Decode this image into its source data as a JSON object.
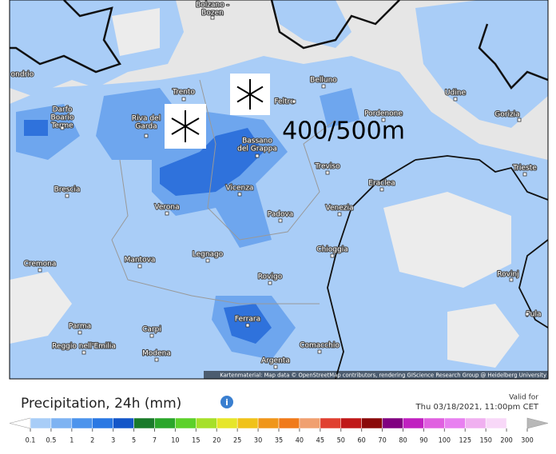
{
  "map": {
    "annotation": "400/500m",
    "attribution": "Kartenmaterial: Map data © OpenStreetMap contributors, rendering GIScience Research Group @ Heidelberg University",
    "cities": [
      {
        "label": [
          "Bolzano -",
          "Bozen"
        ]
      },
      {
        "label": [
          "ondrio"
        ]
      },
      {
        "label": [
          "Trento"
        ]
      },
      {
        "label": [
          "Belluno"
        ]
      },
      {
        "label": [
          "Feltre"
        ]
      },
      {
        "label": [
          "Udine"
        ]
      },
      {
        "label": [
          "Pordenone"
        ]
      },
      {
        "label": [
          "Gorizia"
        ]
      },
      {
        "label": [
          "Darfo",
          "Boario",
          "Terme"
        ]
      },
      {
        "label": [
          "Riva del",
          "Garda"
        ]
      },
      {
        "label": [
          "Bassano",
          "del Grappa"
        ]
      },
      {
        "label": [
          "Treviso"
        ]
      },
      {
        "label": [
          "Eraclea"
        ]
      },
      {
        "label": [
          "Trieste"
        ]
      },
      {
        "label": [
          "Brescia"
        ]
      },
      {
        "label": [
          "Vicenza"
        ]
      },
      {
        "label": [
          "Verona"
        ]
      },
      {
        "label": [
          "Padova"
        ]
      },
      {
        "label": [
          "Venezia"
        ]
      },
      {
        "label": [
          "Legnago"
        ]
      },
      {
        "label": [
          "Chioggia"
        ]
      },
      {
        "label": [
          "Cremona"
        ]
      },
      {
        "label": [
          "Mantova"
        ]
      },
      {
        "label": [
          "Rovigo"
        ]
      },
      {
        "label": [
          "Rovinj"
        ]
      },
      {
        "label": [
          "Pula"
        ]
      },
      {
        "label": [
          "Ferrara"
        ]
      },
      {
        "label": [
          "Parma"
        ]
      },
      {
        "label": [
          "Carpi"
        ]
      },
      {
        "label": [
          "Reggio nell'Emilia"
        ]
      },
      {
        "label": [
          "Modena"
        ]
      },
      {
        "label": [
          "Comacchio"
        ]
      },
      {
        "label": [
          "Argenta"
        ]
      }
    ]
  },
  "legend": {
    "title": "Precipitation, 24h (mm)",
    "valid_label": "Valid for",
    "valid_time": "Thu 03/18/2021, 11:00pm CET",
    "ticks": [
      0.1,
      0.5,
      1,
      2,
      3,
      5,
      7,
      10,
      15,
      20,
      25,
      30,
      35,
      40,
      45,
      50,
      60,
      70,
      80,
      90,
      100,
      125,
      150,
      200,
      300
    ],
    "colors": [
      "#ffffff",
      "#a8cdf7",
      "#7eb3f2",
      "#4d94ec",
      "#2a78e3",
      "#1456c8",
      "#1a7a2a",
      "#2aa62a",
      "#5cd12a",
      "#a6e02a",
      "#e6e62a",
      "#f0c21a",
      "#f0961a",
      "#f07a1a",
      "#f0a070",
      "#e04030",
      "#c01818",
      "#8a0a0a",
      "#800080",
      "#c020c0",
      "#e060e0",
      "#e880f0",
      "#f0b0f0",
      "#f8d8f8",
      "#b8b8b8"
    ]
  }
}
